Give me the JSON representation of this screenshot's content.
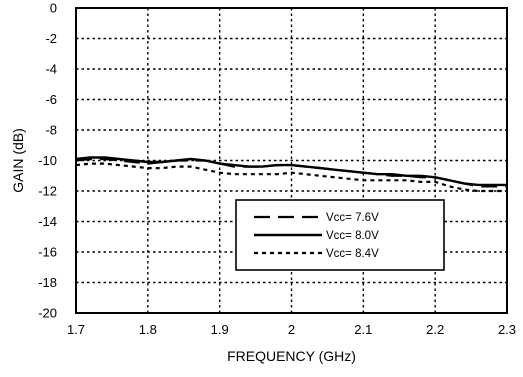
{
  "chart_data": {
    "type": "line",
    "title": "",
    "xlabel": "FREQUENCY (GHz)",
    "ylabel": "GAIN (dB)",
    "xlim": [
      1.7,
      2.3
    ],
    "ylim": [
      -20,
      0
    ],
    "x_ticks": [
      "1.7",
      "1.8",
      "1.9",
      "2",
      "2.1",
      "2.2",
      "2.3"
    ],
    "x_tick_values": [
      1.7,
      1.8,
      1.9,
      2.0,
      2.1,
      2.2,
      2.3
    ],
    "y_ticks": [
      "0",
      "-2",
      "-4",
      "-6",
      "-8",
      "-10",
      "-12",
      "-14",
      "-16",
      "-18",
      "-20"
    ],
    "y_tick_values": [
      0,
      -2,
      -4,
      -6,
      -8,
      -10,
      -12,
      -14,
      -16,
      -18,
      -20
    ],
    "grid": true,
    "legend_position": "lower-center",
    "series": [
      {
        "name": "Vcc= 7.6V",
        "style": "long-dash",
        "x": [
          1.7,
          1.72,
          1.74,
          1.76,
          1.78,
          1.8,
          1.82,
          1.84,
          1.86,
          1.88,
          1.9,
          1.92,
          1.94,
          1.96,
          1.98,
          2.0,
          2.02,
          2.04,
          2.06,
          2.08,
          2.1,
          2.12,
          2.14,
          2.16,
          2.18,
          2.2,
          2.22,
          2.24,
          2.26,
          2.28,
          2.3
        ],
        "y": [
          -10.0,
          -9.9,
          -9.9,
          -10.0,
          -10.1,
          -10.2,
          -10.1,
          -10.0,
          -10.0,
          -10.0,
          -10.2,
          -10.4,
          -10.4,
          -10.4,
          -10.3,
          -10.3,
          -10.4,
          -10.5,
          -10.6,
          -10.7,
          -10.8,
          -10.9,
          -11.0,
          -11.0,
          -11.1,
          -11.1,
          -11.3,
          -11.5,
          -11.7,
          -11.7,
          -11.7
        ]
      },
      {
        "name": "Vcc= 8.0V",
        "style": "solid",
        "x": [
          1.7,
          1.72,
          1.74,
          1.76,
          1.78,
          1.8,
          1.82,
          1.84,
          1.86,
          1.88,
          1.9,
          1.92,
          1.94,
          1.96,
          1.98,
          2.0,
          2.02,
          2.04,
          2.06,
          2.08,
          2.1,
          2.12,
          2.14,
          2.16,
          2.18,
          2.2,
          2.22,
          2.24,
          2.26,
          2.28,
          2.3
        ],
        "y": [
          -9.9,
          -9.8,
          -9.8,
          -9.9,
          -10.0,
          -10.1,
          -10.1,
          -10.0,
          -9.9,
          -10.0,
          -10.2,
          -10.3,
          -10.4,
          -10.4,
          -10.3,
          -10.3,
          -10.4,
          -10.5,
          -10.6,
          -10.7,
          -10.8,
          -10.9,
          -10.9,
          -11.0,
          -11.0,
          -11.1,
          -11.3,
          -11.5,
          -11.6,
          -11.6,
          -11.6
        ]
      },
      {
        "name": "Vcc= 8.4V",
        "style": "short-dash",
        "x": [
          1.7,
          1.72,
          1.74,
          1.76,
          1.78,
          1.8,
          1.82,
          1.84,
          1.86,
          1.88,
          1.9,
          1.92,
          1.94,
          1.96,
          1.98,
          2.0,
          2.02,
          2.04,
          2.06,
          2.08,
          2.1,
          2.12,
          2.14,
          2.16,
          2.18,
          2.2,
          2.22,
          2.24,
          2.26,
          2.28,
          2.3
        ],
        "y": [
          -10.3,
          -10.2,
          -10.2,
          -10.3,
          -10.4,
          -10.5,
          -10.5,
          -10.4,
          -10.4,
          -10.6,
          -10.8,
          -10.9,
          -10.9,
          -10.9,
          -10.9,
          -10.8,
          -10.9,
          -11.0,
          -11.1,
          -11.2,
          -11.3,
          -11.3,
          -11.3,
          -11.3,
          -11.4,
          -11.4,
          -11.7,
          -11.9,
          -12.0,
          -12.0,
          -12.0
        ]
      }
    ]
  }
}
